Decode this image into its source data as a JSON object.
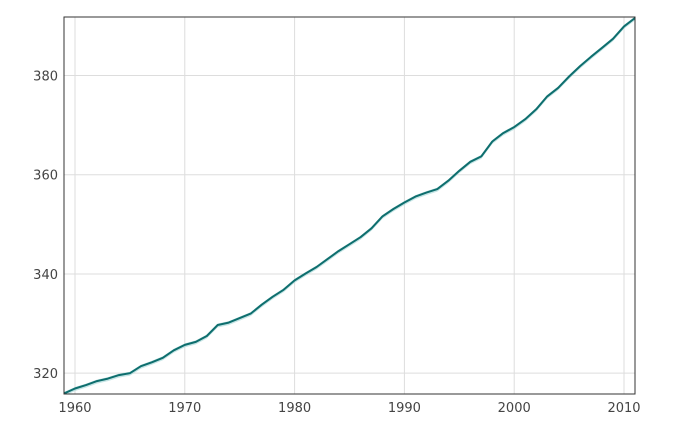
{
  "chart_data": {
    "type": "line",
    "title": "",
    "xlabel": "",
    "ylabel": "",
    "xlim": [
      1959,
      2011
    ],
    "ylim": [
      315.8,
      391.8
    ],
    "x_ticks": [
      "1960",
      "1970",
      "1980",
      "1990",
      "2000",
      "2010"
    ],
    "y_ticks": [
      "320",
      "340",
      "360",
      "380"
    ],
    "grid": true,
    "legend": "none",
    "colors": {
      "line": "#0e6e6e",
      "band": "#9fd3d3"
    },
    "series": [
      {
        "x": [
          1959,
          1960,
          1961,
          1962,
          1963,
          1964,
          1965,
          1966,
          1967,
          1968,
          1969,
          1970,
          1971,
          1972,
          1973,
          1974,
          1975,
          1976,
          1977,
          1978,
          1979,
          1980,
          1981,
          1982,
          1983,
          1984,
          1985,
          1986,
          1987,
          1988,
          1989,
          1990,
          1991,
          1992,
          1993,
          1994,
          1995,
          1996,
          1997,
          1998,
          1999,
          2000,
          2001,
          2002,
          2003,
          2004,
          2005,
          2006,
          2007,
          2008,
          2009,
          2010,
          2011
        ],
        "values": [
          315.9,
          316.9,
          317.6,
          318.4,
          318.9,
          319.6,
          320.0,
          321.4,
          322.2,
          323.1,
          324.6,
          325.7,
          326.3,
          327.5,
          329.7,
          330.2,
          331.1,
          332.0,
          333.8,
          335.4,
          336.8,
          338.7,
          340.1,
          341.4,
          343.0,
          344.6,
          346.0,
          347.4,
          349.2,
          351.6,
          353.1,
          354.4,
          355.6,
          356.4,
          357.1,
          358.8,
          360.8,
          362.6,
          363.7,
          366.7,
          368.4,
          369.6,
          371.2,
          373.2,
          375.8,
          377.5,
          379.8,
          381.9,
          383.8,
          385.6,
          387.4,
          389.9,
          391.6
        ]
      }
    ]
  }
}
